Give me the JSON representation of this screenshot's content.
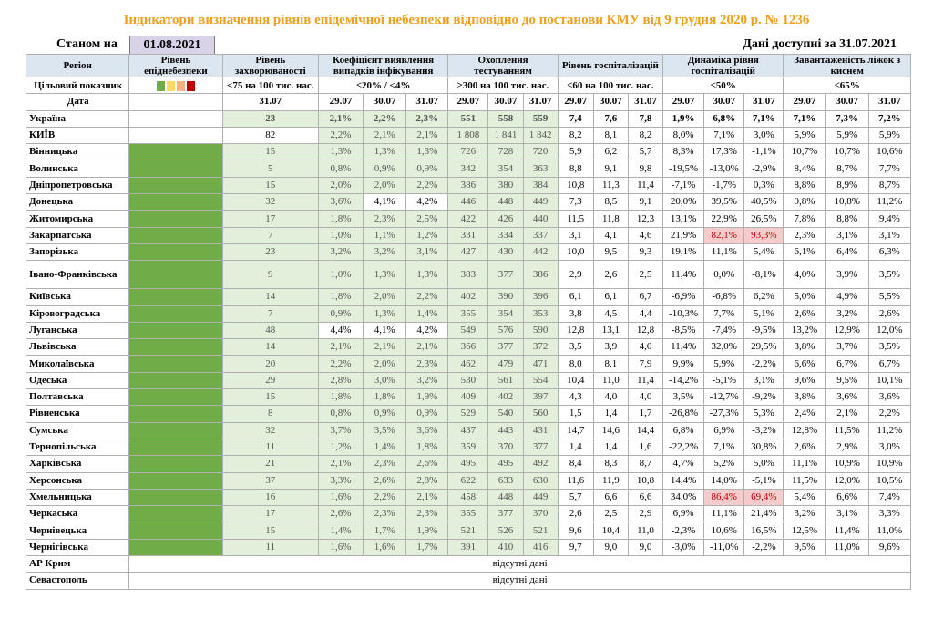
{
  "header": {
    "title": "Індикатори визначення рівнів епідемічної небезпеки відповідно до постанови КМУ від 9 грудня 2020 р. № 1236",
    "as_of_label": "Станом на",
    "as_of_date": "01.08.2021",
    "data_available": "Дані доступні за 31.07.2021"
  },
  "table": {
    "columns": {
      "region": "Регіон",
      "level": "Рівень епіднебезпеки",
      "incidence": "Рівень захворюваності",
      "detection": "Коефіцієнт виявлення випадків інфікування",
      "testing": "Охоплення тестуванням",
      "hosp": "Рівень госпіталізацій",
      "dynamics": "Динаміка рівня госпіталізацій",
      "oxygen": "Завантаженість ліжок з киснем"
    },
    "target_row": {
      "label": "Цільовий показник",
      "incidence": "<75 на 100 тис. нас.",
      "detection": "≤20% / <4%",
      "testing": "≥300 на 100 тис. нас.",
      "hosp": "≤60 на 100 тис. нас.",
      "dynamics": "≤50%",
      "oxygen": "≤65%"
    },
    "level_colors": [
      "#70ad47",
      "#ffd966",
      "#f4b183",
      "#c00000"
    ],
    "date_row": {
      "label": "Дата",
      "dates": [
        "31.07",
        "29.07",
        "30.07",
        "31.07",
        "29.07",
        "30.07",
        "31.07",
        "29.07",
        "30.07",
        "31.07",
        "29.07",
        "30.07",
        "31.07",
        "29.07",
        "30.07",
        "31.07"
      ]
    },
    "rows": [
      {
        "name": "Україна",
        "cells": [
          "23",
          "2,1%",
          "2,2%",
          "2,3%",
          "551",
          "558",
          "559",
          "7,4",
          "7,6",
          "7,8",
          "1,9%",
          "6,8%",
          "7,1%",
          "7,1%",
          "7,3%",
          "7,2%"
        ]
      },
      {
        "name": "КИЇВ",
        "cells": [
          "82",
          "2,2%",
          "2,1%",
          "2,1%",
          "1 808",
          "1 841",
          "1 842",
          "8,2",
          "8,1",
          "8,2",
          "8,0%",
          "7,1%",
          "3,0%",
          "5,9%",
          "5,9%",
          "5,9%"
        ]
      },
      {
        "name": "Вінницька",
        "cells": [
          "15",
          "1,3%",
          "1,3%",
          "1,3%",
          "726",
          "728",
          "720",
          "5,9",
          "6,2",
          "5,7",
          "8,3%",
          "17,3%",
          "-1,1%",
          "10,7%",
          "10,7%",
          "10,6%"
        ]
      },
      {
        "name": "Волинська",
        "cells": [
          "5",
          "0,8%",
          "0,9%",
          "0,9%",
          "342",
          "354",
          "363",
          "8,8",
          "9,1",
          "9,8",
          "-19,5%",
          "-13,0%",
          "-2,9%",
          "8,4%",
          "8,7%",
          "7,7%"
        ]
      },
      {
        "name": "Дніпропетровська",
        "cells": [
          "15",
          "2,0%",
          "2,0%",
          "2,2%",
          "386",
          "380",
          "384",
          "10,8",
          "11,3",
          "11,4",
          "-7,1%",
          "-1,7%",
          "0,3%",
          "8,8%",
          "8,9%",
          "8,7%"
        ]
      },
      {
        "name": "Донецька",
        "cells": [
          "32",
          "3,6%",
          "4,1%",
          "4,2%",
          "446",
          "448",
          "449",
          "7,3",
          "8,5",
          "9,1",
          "20,0%",
          "39,5%",
          "40,5%",
          "9,8%",
          "10,8%",
          "11,2%"
        ]
      },
      {
        "name": "Житомирська",
        "cells": [
          "17",
          "1,8%",
          "2,3%",
          "2,5%",
          "422",
          "426",
          "440",
          "11,5",
          "11,8",
          "12,3",
          "13,1%",
          "22,9%",
          "26,5%",
          "7,8%",
          "8,8%",
          "9,4%"
        ]
      },
      {
        "name": "Закарпатська",
        "cells": [
          "7",
          "1,0%",
          "1,1%",
          "1,2%",
          "331",
          "334",
          "337",
          "3,1",
          "4,1",
          "4,6",
          "21,9%",
          "82,1%",
          "93,3%",
          "2,3%",
          "3,1%",
          "3,1%"
        ]
      },
      {
        "name": "Запорізька",
        "cells": [
          "23",
          "3,2%",
          "3,2%",
          "3,1%",
          "427",
          "430",
          "442",
          "10,0",
          "9,5",
          "9,3",
          "19,1%",
          "11,1%",
          "5,4%",
          "6,1%",
          "6,4%",
          "6,3%"
        ]
      },
      {
        "name": "Івано-Франківська",
        "cells": [
          "9",
          "1,0%",
          "1,3%",
          "1,3%",
          "383",
          "377",
          "386",
          "2,9",
          "2,6",
          "2,5",
          "11,4%",
          "0,0%",
          "-8,1%",
          "4,0%",
          "3,9%",
          "3,5%"
        ]
      },
      {
        "name": "Київська",
        "cells": [
          "14",
          "1,8%",
          "2,0%",
          "2,2%",
          "402",
          "390",
          "396",
          "6,1",
          "6,1",
          "6,7",
          "-6,9%",
          "-6,8%",
          "6,2%",
          "5,0%",
          "4,9%",
          "5,5%"
        ]
      },
      {
        "name": "Кіровоградська",
        "cells": [
          "7",
          "0,9%",
          "1,3%",
          "1,4%",
          "355",
          "354",
          "353",
          "3,8",
          "4,5",
          "4,4",
          "-10,3%",
          "7,7%",
          "5,1%",
          "2,6%",
          "3,2%",
          "2,6%"
        ]
      },
      {
        "name": "Луганська",
        "cells": [
          "48",
          "4,4%",
          "4,1%",
          "4,2%",
          "549",
          "576",
          "590",
          "12,8",
          "13,1",
          "12,8",
          "-8,5%",
          "-7,4%",
          "-9,5%",
          "13,2%",
          "12,9%",
          "12,0%"
        ]
      },
      {
        "name": "Львівська",
        "cells": [
          "14",
          "2,1%",
          "2,1%",
          "2,1%",
          "366",
          "377",
          "372",
          "3,5",
          "3,9",
          "4,0",
          "11,4%",
          "32,0%",
          "29,5%",
          "3,8%",
          "3,7%",
          "3,5%"
        ]
      },
      {
        "name": "Миколаївська",
        "cells": [
          "20",
          "2,2%",
          "2,0%",
          "2,3%",
          "462",
          "479",
          "471",
          "8,0",
          "8,1",
          "7,9",
          "9,9%",
          "5,9%",
          "-2,2%",
          "6,6%",
          "6,7%",
          "6,7%"
        ]
      },
      {
        "name": "Одеська",
        "cells": [
          "29",
          "2,8%",
          "3,0%",
          "3,2%",
          "530",
          "561",
          "554",
          "10,4",
          "11,0",
          "11,4",
          "-14,2%",
          "-5,1%",
          "3,1%",
          "9,6%",
          "9,5%",
          "10,1%"
        ]
      },
      {
        "name": "Полтавська",
        "cells": [
          "15",
          "1,8%",
          "1,8%",
          "1,9%",
          "409",
          "402",
          "397",
          "4,3",
          "4,0",
          "4,0",
          "3,5%",
          "-12,7%",
          "-9,2%",
          "3,8%",
          "3,6%",
          "3,6%"
        ]
      },
      {
        "name": "Рівненська",
        "cells": [
          "8",
          "0,8%",
          "0,9%",
          "0,9%",
          "529",
          "540",
          "560",
          "1,5",
          "1,4",
          "1,7",
          "-26,8%",
          "-27,3%",
          "5,3%",
          "2,4%",
          "2,1%",
          "2,2%"
        ]
      },
      {
        "name": "Сумська",
        "cells": [
          "32",
          "3,7%",
          "3,5%",
          "3,6%",
          "437",
          "443",
          "431",
          "14,7",
          "14,6",
          "14,4",
          "6,8%",
          "6,9%",
          "-3,2%",
          "12,8%",
          "11,5%",
          "11,2%"
        ]
      },
      {
        "name": "Тернопільська",
        "cells": [
          "11",
          "1,2%",
          "1,4%",
          "1,8%",
          "359",
          "370",
          "377",
          "1,4",
          "1,4",
          "1,6",
          "-22,2%",
          "7,1%",
          "30,8%",
          "2,6%",
          "2,9%",
          "3,0%"
        ]
      },
      {
        "name": "Харківська",
        "cells": [
          "21",
          "2,1%",
          "2,3%",
          "2,6%",
          "495",
          "495",
          "492",
          "8,4",
          "8,3",
          "8,7",
          "4,7%",
          "5,2%",
          "5,0%",
          "11,1%",
          "10,9%",
          "10,9%"
        ]
      },
      {
        "name": "Херсонська",
        "cells": [
          "37",
          "3,3%",
          "2,6%",
          "2,8%",
          "622",
          "633",
          "630",
          "11,6",
          "11,9",
          "10,8",
          "14,4%",
          "14,0%",
          "-5,1%",
          "11,5%",
          "12,0%",
          "10,5%"
        ]
      },
      {
        "name": "Хмельницька",
        "cells": [
          "16",
          "1,6%",
          "2,2%",
          "2,1%",
          "458",
          "448",
          "449",
          "5,7",
          "6,6",
          "6,6",
          "34,0%",
          "86,4%",
          "69,4%",
          "5,4%",
          "6,6%",
          "7,4%"
        ]
      },
      {
        "name": "Черкаська",
        "cells": [
          "17",
          "2,6%",
          "2,3%",
          "2,3%",
          "355",
          "377",
          "370",
          "2,6",
          "2,5",
          "2,9",
          "6,9%",
          "11,1%",
          "21,4%",
          "3,2%",
          "3,1%",
          "3,3%"
        ]
      },
      {
        "name": "Чернівецька",
        "cells": [
          "15",
          "1,4%",
          "1,7%",
          "1,9%",
          "521",
          "526",
          "521",
          "9,6",
          "10,4",
          "11,0",
          "-2,3%",
          "10,6%",
          "16,5%",
          "12,5%",
          "11,4%",
          "11,0%"
        ]
      },
      {
        "name": "Чернігівська",
        "cells": [
          "11",
          "1,6%",
          "1,6%",
          "1,7%",
          "391",
          "410",
          "416",
          "9,7",
          "9,0",
          "9,0",
          "-3,0%",
          "-11,0%",
          "-2,2%",
          "9,5%",
          "11,0%",
          "9,6%"
        ]
      }
    ],
    "missing_rows": [
      {
        "name": "АР Крим",
        "note": "відсутні дані"
      },
      {
        "name": "Севастополь",
        "note": "відсутні дані"
      }
    ]
  }
}
